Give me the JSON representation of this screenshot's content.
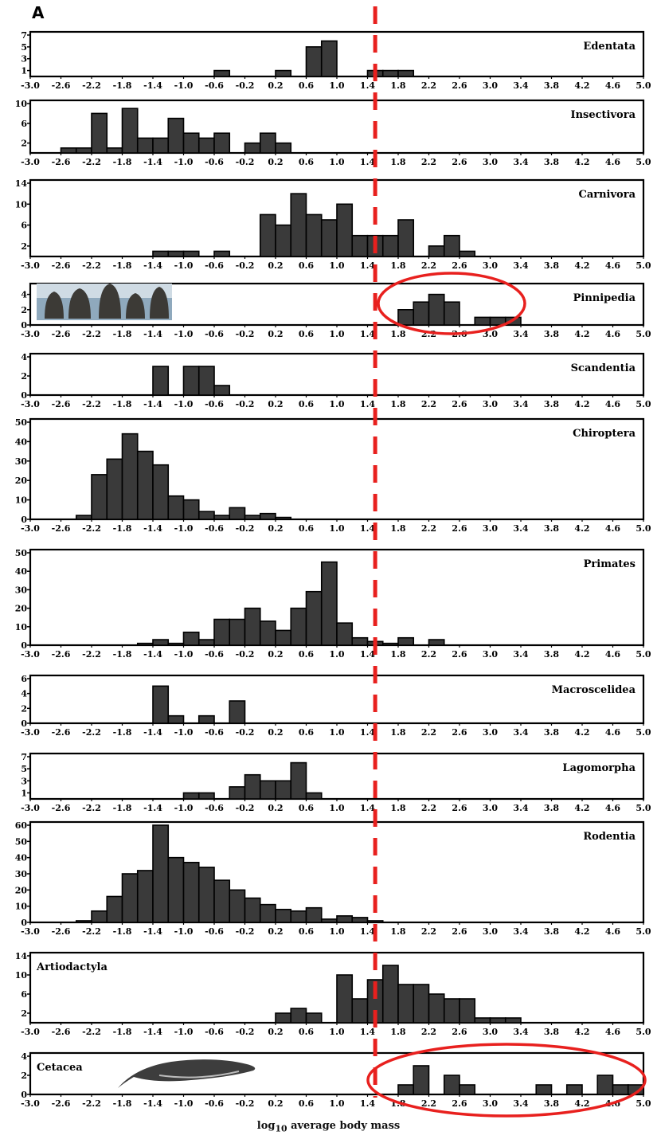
{
  "figure": {
    "panel_label": "A",
    "xlabel": "log10 average body mass"
  },
  "colors": {
    "bar_fill": "#3a3a3a",
    "bar_stroke": "#000000",
    "threshold_line": "#e8201e",
    "highlight_ellipse": "#e8201e"
  },
  "icons": [
    "seal-photo",
    "whale-illustration"
  ],
  "chart_data": {
    "type": "bar",
    "shared_x": {
      "bin_starts": [
        -3.0,
        -2.8,
        -2.6,
        -2.4,
        -2.2,
        -2.0,
        -1.8,
        -1.6,
        -1.4,
        -1.2,
        -1.0,
        -0.8,
        -0.6,
        -0.4,
        -0.2,
        0.0,
        0.2,
        0.4,
        0.6,
        0.8,
        1.0,
        1.2,
        1.4,
        1.6,
        1.8,
        2.0,
        2.2,
        2.4,
        2.6,
        2.8,
        3.0,
        3.2,
        3.4,
        3.6,
        3.8,
        4.0,
        4.2,
        4.4,
        4.6,
        4.8
      ],
      "bin_width": 0.2,
      "xlim": [
        -3.0,
        5.0
      ]
    },
    "xtick_labels": [
      "-3.0",
      "-2.6",
      "-2.2",
      "-1.8",
      "-1.4",
      "-1.0",
      "-0.6",
      "-0.2",
      "0.2",
      "0.6",
      "1.0",
      "1.4",
      "1.8",
      "2.2",
      "2.6",
      "3.0",
      "3.4",
      "3.8",
      "4.2",
      "4.6",
      "5.0"
    ],
    "xtick_values": [
      -3.0,
      -2.6,
      -2.2,
      -1.8,
      -1.4,
      -1.0,
      -0.6,
      -0.2,
      0.2,
      0.6,
      1.0,
      1.4,
      1.8,
      2.2,
      2.6,
      3.0,
      3.4,
      3.8,
      4.2,
      4.6,
      5.0
    ],
    "threshold_x": 1.5,
    "panels": [
      {
        "name": "Edentata",
        "ylim": [
          0,
          7
        ],
        "yticks": [
          "1",
          "3",
          "5",
          "7"
        ],
        "ytick_values": [
          1,
          3,
          5,
          7
        ],
        "values": [
          0,
          0,
          0,
          0,
          0,
          0,
          0,
          0,
          0,
          0,
          0,
          0,
          1,
          0,
          0,
          0,
          1,
          0,
          5,
          6,
          0,
          0,
          1,
          1,
          1,
          0,
          0,
          0,
          0,
          0,
          0,
          0,
          0,
          0,
          0,
          0,
          0,
          0,
          0,
          0
        ]
      },
      {
        "name": "Insectivora",
        "ylim": [
          0,
          10
        ],
        "yticks": [
          "2",
          "6",
          "10"
        ],
        "ytick_values": [
          2,
          6,
          10
        ],
        "values": [
          0,
          0,
          1,
          1,
          8,
          1,
          9,
          3,
          3,
          7,
          4,
          3,
          4,
          0,
          2,
          4,
          2,
          0,
          0,
          0,
          0,
          0,
          0,
          0,
          0,
          0,
          0,
          0,
          0,
          0,
          0,
          0,
          0,
          0,
          0,
          0,
          0,
          0,
          0,
          0
        ]
      },
      {
        "name": "Carnivora",
        "ylim": [
          0,
          14
        ],
        "yticks": [
          "2",
          "6",
          "10",
          "14"
        ],
        "ytick_values": [
          2,
          6,
          10,
          14
        ],
        "values": [
          0,
          0,
          0,
          0,
          0,
          0,
          0,
          0,
          1,
          1,
          1,
          0,
          1,
          0,
          0,
          8,
          6,
          12,
          8,
          7,
          10,
          4,
          4,
          4,
          7,
          0,
          2,
          4,
          1,
          0,
          0,
          0,
          0,
          0,
          0,
          0,
          0,
          0,
          0,
          0
        ]
      },
      {
        "name": "Pinnipedia",
        "ylim": [
          0,
          5
        ],
        "yticks": [
          "0",
          "2",
          "4"
        ],
        "ytick_values": [
          0,
          2,
          4
        ],
        "values": [
          0,
          0,
          0,
          0,
          0,
          0,
          0,
          0,
          0,
          0,
          0,
          0,
          0,
          0,
          0,
          0,
          0,
          0,
          0,
          0,
          0,
          0,
          0,
          0,
          2,
          3,
          4,
          3,
          0,
          1,
          1,
          1,
          0,
          0,
          0,
          0,
          0,
          0,
          0,
          0
        ]
      },
      {
        "name": "Scandentia",
        "ylim": [
          0,
          4
        ],
        "yticks": [
          "0",
          "2",
          "4"
        ],
        "ytick_values": [
          0,
          2,
          4
        ],
        "values": [
          0,
          0,
          0,
          0,
          0,
          0,
          0,
          0,
          3,
          0,
          3,
          3,
          1,
          0,
          0,
          0,
          0,
          0,
          0,
          0,
          0,
          0,
          0,
          0,
          0,
          0,
          0,
          0,
          0,
          0,
          0,
          0,
          0,
          0,
          0,
          0,
          0,
          0,
          0,
          0
        ]
      },
      {
        "name": "Chiroptera",
        "ylim": [
          0,
          50
        ],
        "yticks": [
          "0",
          "10",
          "20",
          "30",
          "40",
          "50"
        ],
        "ytick_values": [
          0,
          10,
          20,
          30,
          40,
          50
        ],
        "values": [
          0,
          0,
          0,
          2,
          23,
          31,
          44,
          35,
          28,
          12,
          10,
          4,
          2,
          6,
          2,
          3,
          1,
          0,
          0,
          0,
          0,
          0,
          0,
          0,
          0,
          0,
          0,
          0,
          0,
          0,
          0,
          0,
          0,
          0,
          0,
          0,
          0,
          0,
          0,
          0
        ]
      },
      {
        "name": "Primates",
        "ylim": [
          0,
          50
        ],
        "yticks": [
          "0",
          "10",
          "20",
          "30",
          "40",
          "50"
        ],
        "ytick_values": [
          0,
          10,
          20,
          30,
          40,
          50
        ],
        "values": [
          0,
          0,
          0,
          0,
          0,
          0,
          0,
          1,
          3,
          1,
          7,
          3,
          14,
          14,
          20,
          13,
          8,
          20,
          29,
          45,
          12,
          4,
          2,
          1,
          4,
          0,
          3,
          0,
          0,
          0,
          0,
          0,
          0,
          0,
          0,
          0,
          0,
          0,
          0,
          0
        ]
      },
      {
        "name": "Macroscelidea",
        "ylim": [
          0,
          6
        ],
        "yticks": [
          "0",
          "2",
          "4",
          "6"
        ],
        "ytick_values": [
          0,
          2,
          4,
          6
        ],
        "values": [
          0,
          0,
          0,
          0,
          0,
          0,
          0,
          0,
          5,
          1,
          0,
          1,
          0,
          3,
          0,
          0,
          0,
          0,
          0,
          0,
          0,
          0,
          0,
          0,
          0,
          0,
          0,
          0,
          0,
          0,
          0,
          0,
          0,
          0,
          0,
          0,
          0,
          0,
          0,
          0
        ]
      },
      {
        "name": "Lagomorpha",
        "ylim": [
          0,
          7
        ],
        "yticks": [
          "1",
          "3",
          "5",
          "7"
        ],
        "ytick_values": [
          1,
          3,
          5,
          7
        ],
        "values": [
          0,
          0,
          0,
          0,
          0,
          0,
          0,
          0,
          0,
          0,
          1,
          1,
          0,
          2,
          4,
          3,
          3,
          6,
          1,
          0,
          0,
          0,
          0,
          0,
          0,
          0,
          0,
          0,
          0,
          0,
          0,
          0,
          0,
          0,
          0,
          0,
          0,
          0,
          0,
          0
        ]
      },
      {
        "name": "Rodentia",
        "ylim": [
          0,
          60
        ],
        "yticks": [
          "0",
          "10",
          "20",
          "30",
          "40",
          "50",
          "60"
        ],
        "ytick_values": [
          0,
          10,
          20,
          30,
          40,
          50,
          60
        ],
        "values": [
          0,
          0,
          0,
          1,
          7,
          16,
          30,
          32,
          60,
          40,
          37,
          34,
          26,
          20,
          15,
          11,
          8,
          7,
          9,
          2,
          4,
          3,
          1,
          0,
          0,
          0,
          0,
          0,
          0,
          0,
          0,
          0,
          0,
          0,
          0,
          0,
          0,
          0,
          0,
          0
        ]
      },
      {
        "name": "Artiodactyla",
        "ylim": [
          0,
          14
        ],
        "yticks": [
          "2",
          "6",
          "10",
          "14"
        ],
        "ytick_values": [
          2,
          6,
          10,
          14
        ],
        "values": [
          0,
          0,
          0,
          0,
          0,
          0,
          0,
          0,
          0,
          0,
          0,
          0,
          0,
          0,
          0,
          0,
          2,
          3,
          2,
          0,
          10,
          5,
          9,
          12,
          8,
          8,
          6,
          5,
          5,
          1,
          1,
          1,
          0,
          0,
          0,
          0,
          0,
          0,
          0,
          0
        ]
      },
      {
        "name": "Cetacea",
        "ylim": [
          0,
          4
        ],
        "yticks": [
          "0",
          "2",
          "4"
        ],
        "ytick_values": [
          0,
          2,
          4
        ],
        "values": [
          0,
          0,
          0,
          0,
          0,
          0,
          0,
          0,
          0,
          0,
          0,
          0,
          0,
          0,
          0,
          0,
          0,
          0,
          0,
          0,
          0,
          0,
          0,
          0,
          1,
          3,
          0,
          2,
          1,
          0,
          0,
          0,
          0,
          1,
          0,
          1,
          0,
          2,
          1,
          1
        ]
      }
    ]
  }
}
